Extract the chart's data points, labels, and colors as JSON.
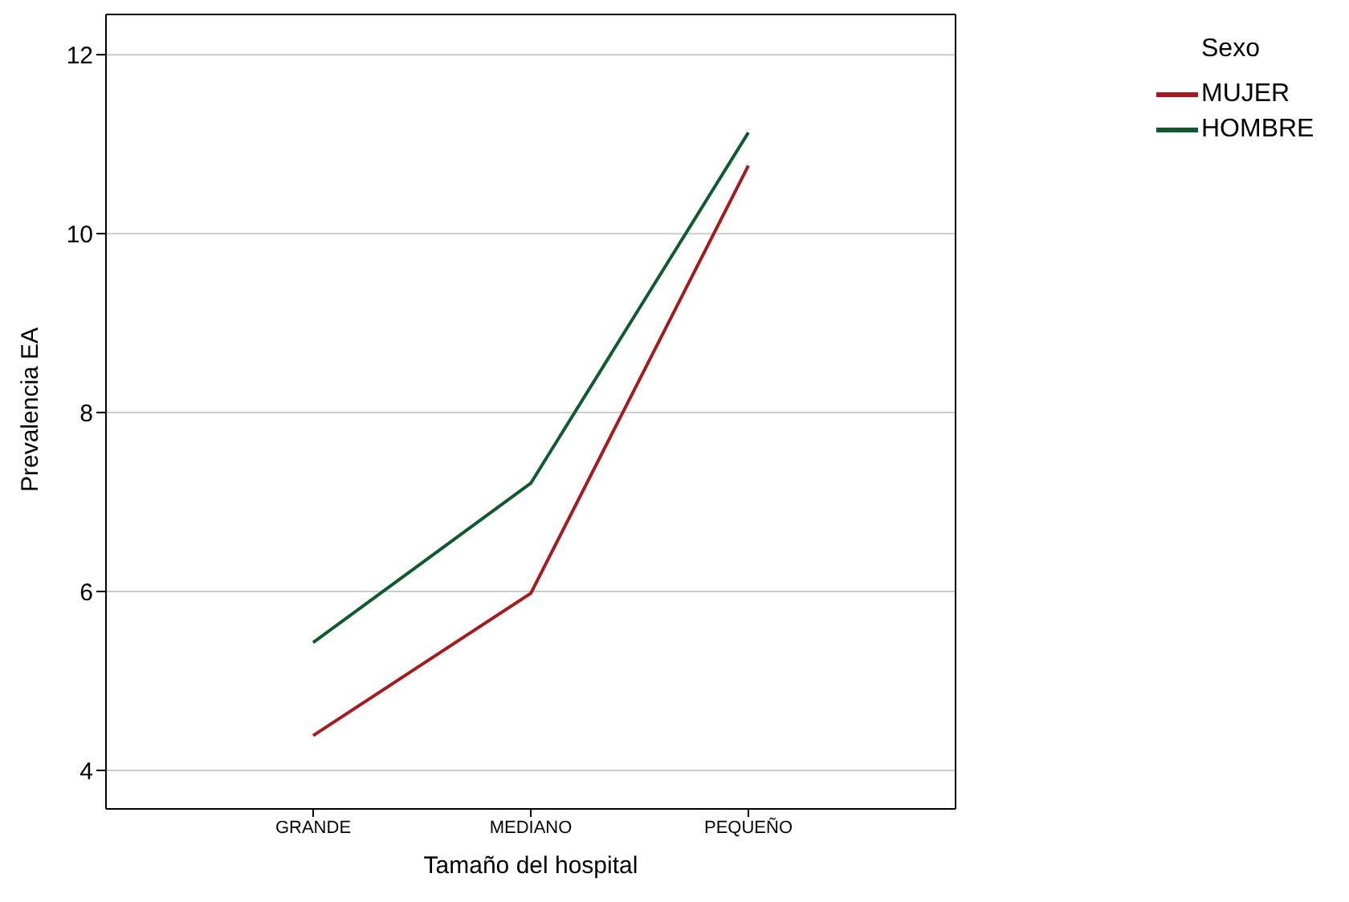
{
  "chart_data": {
    "type": "line",
    "xlabel": "Tamaño del hospital",
    "ylabel": "Prevalencia EA",
    "legend_title": "Sexo",
    "categories": [
      "GRANDE",
      "MEDIANO",
      "PEQUEÑO"
    ],
    "series": [
      {
        "name": "MUJER",
        "color": "#a8191e",
        "values": [
          4.39,
          5.98,
          10.76
        ]
      },
      {
        "name": "HOMBRE",
        "color": "#0f5a2e",
        "values": [
          5.43,
          7.21,
          11.13
        ]
      }
    ],
    "ylim": [
      3.57,
      12.45
    ],
    "yticks": [
      4,
      6,
      8,
      10,
      12
    ],
    "grid": "y",
    "legend": "top right",
    "marker": "none",
    "line_style": "solid"
  }
}
